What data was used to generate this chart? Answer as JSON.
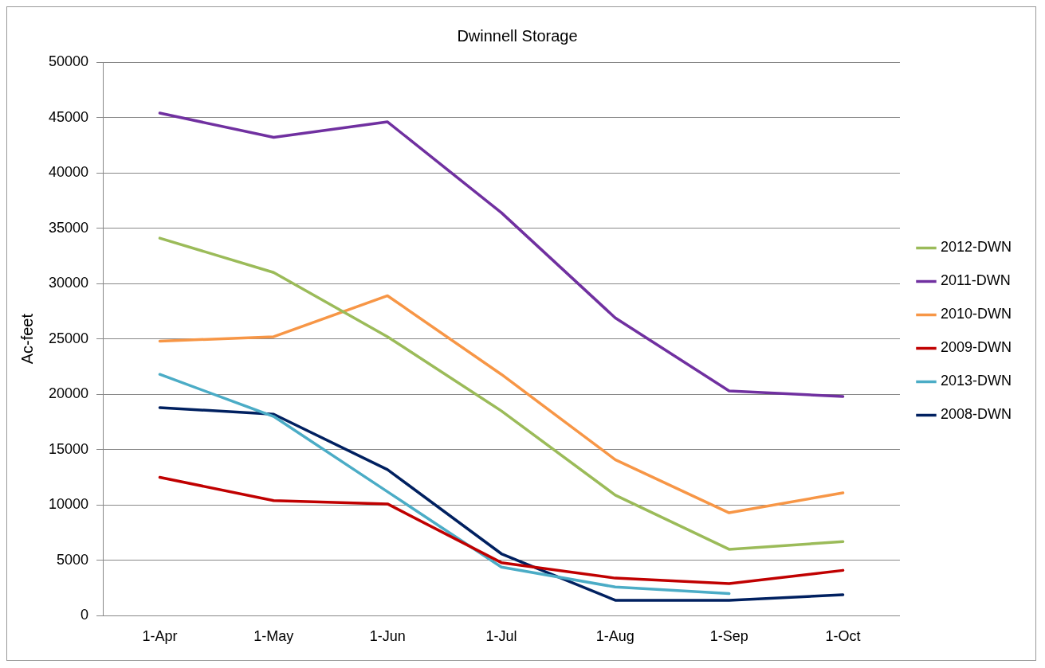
{
  "chart_data": {
    "type": "line",
    "title": "Dwinnell Storage",
    "ylabel": "Ac-feet",
    "categories": [
      "1-Apr",
      "1-May",
      "1-Jun",
      "1-Jul",
      "1-Aug",
      "1-Sep",
      "1-Oct"
    ],
    "series": [
      {
        "name": "2012-DWN",
        "color": "#9bbb59",
        "values": [
          34100,
          31000,
          25200,
          18500,
          10900,
          6000,
          6700
        ]
      },
      {
        "name": "2011-DWN",
        "color": "#7030a0",
        "values": [
          45400,
          43200,
          44600,
          36400,
          26900,
          20300,
          19800
        ]
      },
      {
        "name": "2010-DWN",
        "color": "#f79646",
        "values": [
          24800,
          25200,
          28900,
          21800,
          14100,
          9300,
          11100
        ]
      },
      {
        "name": "2009-DWN",
        "color": "#c00000",
        "values": [
          12500,
          10400,
          10100,
          4800,
          3400,
          2900,
          4100
        ]
      },
      {
        "name": "2013-DWN",
        "color": "#4bacc6",
        "values": [
          21800,
          18000,
          11200,
          4400,
          2600,
          2000,
          null
        ]
      },
      {
        "name": "2008-DWN",
        "color": "#002060",
        "values": [
          18800,
          18200,
          13200,
          5600,
          1400,
          1400,
          1900
        ]
      }
    ],
    "ylim": [
      0,
      50000
    ],
    "yticks": [
      0,
      5000,
      10000,
      15000,
      20000,
      25000,
      30000,
      35000,
      40000,
      45000,
      50000
    ],
    "grid": "y",
    "legend": "right",
    "marker": "none",
    "line_style": "solid"
  }
}
